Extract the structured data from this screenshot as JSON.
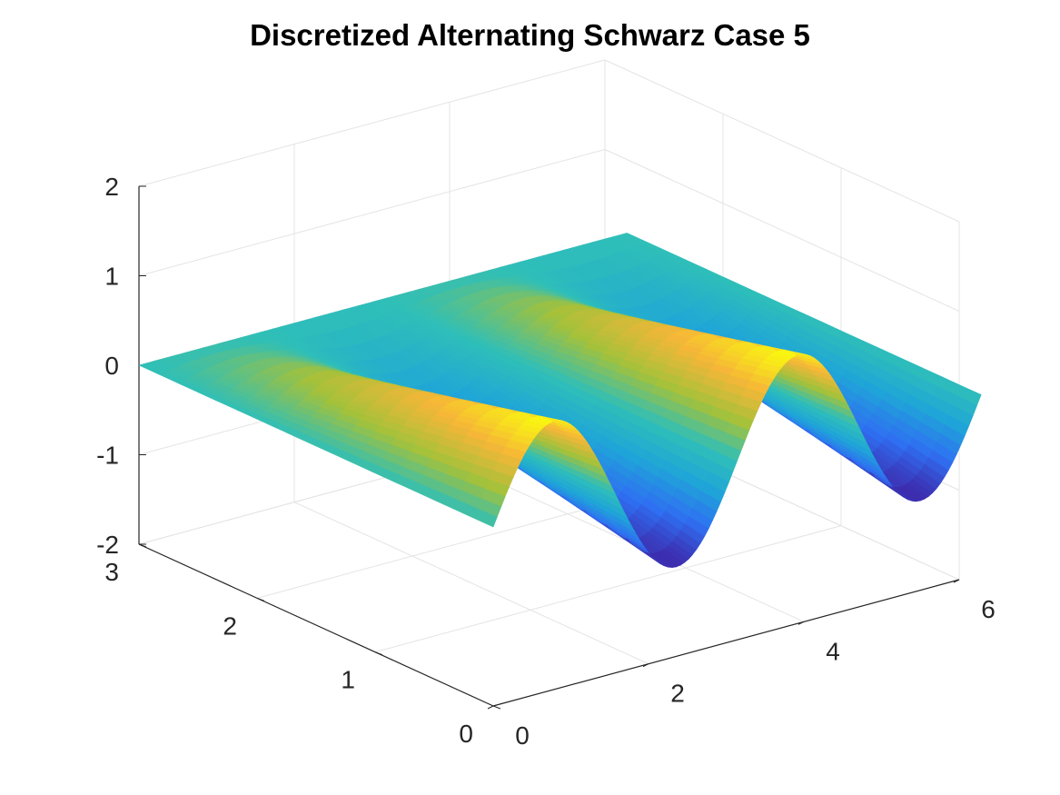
{
  "chart_data": {
    "type": "surface",
    "title": "Discretized Alternating Schwarz Case 5",
    "xlabel": "",
    "ylabel": "",
    "zlabel": "",
    "xlim": [
      0,
      6
    ],
    "ylim": [
      0,
      3
    ],
    "zlim": [
      -2,
      2
    ],
    "x_ticks": [
      "0",
      "2",
      "4",
      "6"
    ],
    "y_ticks": [
      "0",
      "1",
      "2",
      "3"
    ],
    "z_ticks": [
      "-2",
      "-1",
      "0",
      "1",
      "2"
    ],
    "grid": true,
    "colormap": "parula",
    "colormap_colors": [
      "#3e26a8",
      "#2f6ff2",
      "#1fa5d8",
      "#2fbfb8",
      "#a4c13a",
      "#f6b638",
      "#f9fb0e"
    ],
    "surfaces": [
      {
        "name": "",
        "x_range": [
          0,
          3.14159
        ],
        "y_range": [
          0,
          3
        ],
        "z_function": "sin(2*x)*(1-y/3)",
        "z_range": [
          -1,
          1
        ]
      },
      {
        "name": "",
        "x_range": [
          3.14159,
          6.28318
        ],
        "y_range": [
          0,
          3
        ],
        "z_function": "sin(2*x)*(1-y/3)",
        "z_range": [
          -1,
          1
        ]
      }
    ]
  }
}
